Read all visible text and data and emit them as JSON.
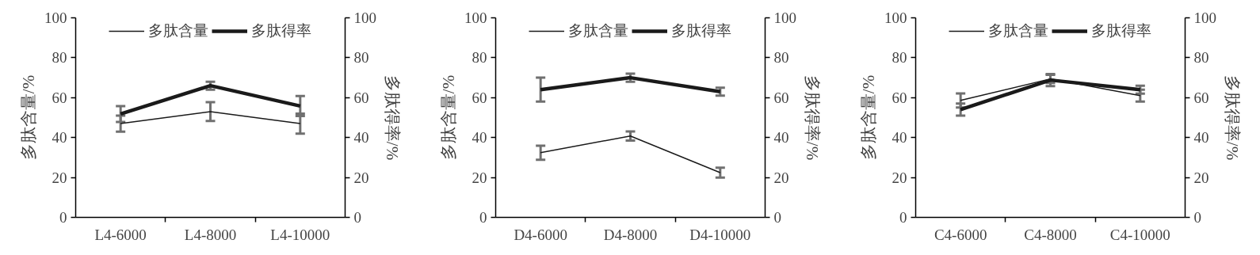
{
  "chart_data": [
    {
      "type": "line",
      "categories": [
        "L4-6000",
        "L4-8000",
        "L4-10000"
      ],
      "ylabel": "多肽含量/%",
      "y2label": "多肽得率/%",
      "ylim": [
        0,
        100
      ],
      "yticks": [
        0,
        20,
        40,
        60,
        80,
        100
      ],
      "y2lim": [
        0,
        100
      ],
      "y2ticks": [
        0,
        20,
        40,
        60,
        80,
        100
      ],
      "legend": "top",
      "grid": false,
      "series": [
        {
          "name": "多肽含量",
          "color": "#1a1a1a",
          "values": [
            47,
            53,
            47
          ],
          "errors": [
            4,
            4.7,
            5
          ]
        },
        {
          "name": "多肽得率",
          "color": "#1a1a1a",
          "values": [
            51.8,
            66,
            55.8
          ],
          "errors": [
            4,
            2,
            5
          ]
        }
      ]
    },
    {
      "type": "line",
      "categories": [
        "D4-6000",
        "D4-8000",
        "D4-10000"
      ],
      "ylabel": "多肽含量/%",
      "y2label": "多肽得率/%",
      "ylim": [
        0,
        100
      ],
      "yticks": [
        0,
        20,
        40,
        60,
        80,
        100
      ],
      "y2lim": [
        0,
        100
      ],
      "y2ticks": [
        0,
        20,
        40,
        60,
        80,
        100
      ],
      "legend": "top",
      "grid": false,
      "series": [
        {
          "name": "多肽含量",
          "color": "#1a1a1a",
          "values": [
            32.4,
            40.8,
            22.4
          ],
          "errors": [
            3.5,
            2.3,
            2.5
          ]
        },
        {
          "name": "多肽得率",
          "color": "#1a1a1a",
          "values": [
            64,
            70,
            63
          ],
          "errors": [
            6,
            2,
            2
          ]
        }
      ]
    },
    {
      "type": "line",
      "categories": [
        "C4-6000",
        "C4-8000",
        "C4-10000"
      ],
      "ylabel": "多肽含量/%",
      "y2label": "多肽得率/%",
      "ylim": [
        0,
        100
      ],
      "yticks": [
        0,
        20,
        40,
        60,
        80,
        100
      ],
      "y2lim": [
        0,
        100
      ],
      "y2ticks": [
        0,
        20,
        40,
        60,
        80,
        100
      ],
      "legend": "top",
      "grid": false,
      "series": [
        {
          "name": "多肽含量",
          "color": "#1a1a1a",
          "values": [
            58.6,
            69.4,
            61
          ],
          "errors": [
            3.5,
            2,
            3
          ]
        },
        {
          "name": "多肽得率",
          "color": "#1a1a1a",
          "values": [
            54,
            68.8,
            64
          ],
          "errors": [
            3,
            3,
            2
          ]
        }
      ]
    }
  ]
}
